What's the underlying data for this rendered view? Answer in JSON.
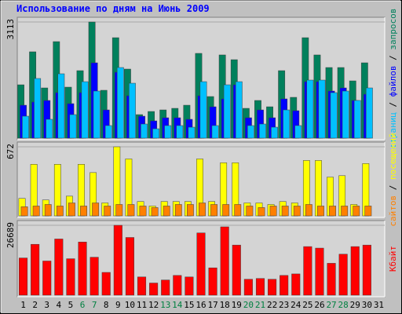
{
  "title": "Использование по дням на Июнь 2009",
  "legend_separator": " / ",
  "chart_data": [
    {
      "type": "bar",
      "ylim": [
        0,
        3113
      ],
      "yticks": [
        3113
      ],
      "series": [
        {
          "name": "запросов",
          "color": "#00805c",
          "values": [
            1430,
            2314,
            1346,
            2587,
            1367,
            1809,
            3113,
            1283,
            2692,
            1851,
            631,
            715,
            757,
            799,
            883,
            2272,
            1115,
            2230,
            2103,
            799,
            1010,
            841,
            1809,
            1094,
            2692,
            2230,
            1893,
            1893,
            1535,
            2019,
            null
          ]
        },
        {
          "name": "файлов",
          "color": "#0000ff",
          "values": [
            883,
            968,
            1010,
            1220,
            925,
            1220,
            2019,
            757,
            1767,
            1136,
            589,
            463,
            547,
            547,
            505,
            1136,
            841,
            1052,
            1430,
            547,
            757,
            547,
            1052,
            736,
            1514,
            1514,
            1262,
            1346,
            1010,
            1178,
            null
          ]
        },
        {
          "name": "страниц",
          "color": "#00c0ff",
          "values": [
            589,
            1599,
            505,
            1725,
            631,
            1514,
            1262,
            337,
            1893,
            1472,
            379,
            252,
            337,
            337,
            294,
            1514,
            337,
            1430,
            1514,
            337,
            379,
            294,
            757,
            337,
            1556,
            1556,
            1220,
            1262,
            1010,
            1346,
            null
          ]
        }
      ]
    },
    {
      "type": "bar",
      "ylim": [
        0,
        672
      ],
      "yticks": [
        672
      ],
      "series": [
        {
          "name": "посещений",
          "color": "#ffff00",
          "values": [
            170,
            502,
            155,
            502,
            192,
            502,
            421,
            126,
            672,
            554,
            140,
            96,
            140,
            140,
            140,
            554,
            140,
            517,
            517,
            126,
            126,
            111,
            140,
            126,
            539,
            539,
            377,
            391,
            111,
            509,
            null
          ]
        },
        {
          "name": "сайтов",
          "color": "#ff8000",
          "values": [
            89,
            96,
            111,
            96,
            126,
            96,
            126,
            96,
            111,
            111,
            96,
            81,
            96,
            111,
            111,
            126,
            111,
            111,
            111,
            96,
            81,
            96,
            96,
            96,
            111,
            96,
            96,
            96,
            96,
            96,
            null
          ]
        }
      ]
    },
    {
      "type": "bar",
      "ylim": [
        0,
        26689
      ],
      "yticks": [
        26689
      ],
      "categories": [
        "1",
        "2",
        "3",
        "4",
        "5",
        "6",
        "7",
        "8",
        "9",
        "10",
        "11",
        "12",
        "13",
        "14",
        "15",
        "16",
        "17",
        "18",
        "19",
        "20",
        "21",
        "22",
        "23",
        "24",
        "25",
        "26",
        "27",
        "28",
        "29",
        "30",
        "31"
      ],
      "category_colors": [
        "#000000",
        "#000000",
        "#000000",
        "#000000",
        "#000000",
        "#008040",
        "#008040",
        "#000000",
        "#000000",
        "#000000",
        "#000000",
        "#000000",
        "#008040",
        "#008040",
        "#000000",
        "#000000",
        "#000000",
        "#000000",
        "#000000",
        "#008040",
        "#008040",
        "#000000",
        "#000000",
        "#000000",
        "#000000",
        "#000000",
        "#008040",
        "#008040",
        "#000000",
        "#000000",
        "#000000"
      ],
      "series": [
        {
          "name": "Кбайт",
          "color": "#ff0000",
          "values": [
            14210,
            19430,
            13050,
            21460,
            13920,
            20300,
            14500,
            8700,
            26689,
            22040,
            6960,
            4640,
            5800,
            7540,
            6960,
            23780,
            10440,
            26100,
            19140,
            6090,
            6380,
            6090,
            7540,
            8120,
            18560,
            17980,
            12180,
            15660,
            18560,
            19140,
            null
          ]
        }
      ]
    }
  ]
}
